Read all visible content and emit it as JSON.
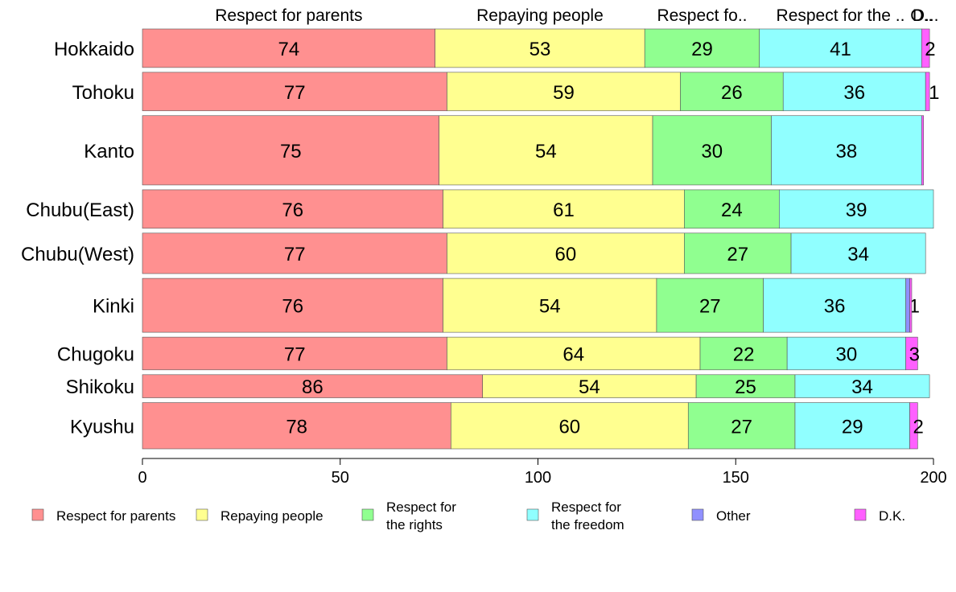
{
  "chart_data": {
    "type": "bar",
    "orientation": "horizontal",
    "stacked": true,
    "categories": [
      "Hokkaido",
      "Tohoku",
      "Kanto",
      "Chubu(East)",
      "Chubu(West)",
      "Kinki",
      "Chugoku",
      "Shikoku",
      "Kyushu"
    ],
    "category_weights": [
      1,
      1,
      1.8,
      1,
      1.05,
      1.4,
      0.85,
      0.6,
      1.2
    ],
    "series": [
      {
        "name": "Respect for parents",
        "legend_label": [
          "Respect for parents"
        ],
        "top_label": "Respect for parents",
        "color": "#FF9090",
        "values": [
          74,
          77,
          75,
          76,
          77,
          76,
          77,
          86,
          78
        ]
      },
      {
        "name": "Repaying people",
        "legend_label": [
          "Repaying people"
        ],
        "top_label": "Repaying people",
        "color": "#FFFF90",
        "values": [
          53,
          59,
          54,
          61,
          60,
          54,
          64,
          54,
          60
        ]
      },
      {
        "name": "Respect for the rights",
        "legend_label": [
          "Respect for",
          "the rights"
        ],
        "top_label": "Respect fo..",
        "color": "#90FF90",
        "values": [
          29,
          26,
          30,
          24,
          27,
          27,
          22,
          25,
          27
        ]
      },
      {
        "name": "Respect for the freedom",
        "legend_label": [
          "Respect for",
          "the freedom"
        ],
        "top_label": "Respect for the ..",
        "color": "#90FFFF",
        "values": [
          41,
          36,
          38,
          39,
          34,
          36,
          30,
          34,
          29
        ]
      },
      {
        "name": "Other",
        "legend_label": [
          "Other"
        ],
        "top_label": "O..",
        "color": "#9090FF",
        "values": [
          0,
          0,
          0,
          0,
          0,
          1,
          0,
          0,
          0
        ]
      },
      {
        "name": "D.K.",
        "legend_label": [
          "D.K."
        ],
        "top_label": "D...",
        "color": "#FF60FF",
        "values": [
          2,
          1,
          0.5,
          0,
          0,
          0.5,
          3,
          0,
          2
        ]
      }
    ],
    "data_labels": [
      [
        "74",
        "53",
        "29",
        "41",
        "",
        "2"
      ],
      [
        "77",
        "59",
        "26",
        "36",
        "",
        "1"
      ],
      [
        "75",
        "54",
        "30",
        "38",
        "",
        ""
      ],
      [
        "76",
        "61",
        "24",
        "39",
        "",
        ""
      ],
      [
        "77",
        "60",
        "27",
        "34",
        "",
        ""
      ],
      [
        "76",
        "54",
        "27",
        "36",
        "1",
        ""
      ],
      [
        "77",
        "64",
        "22",
        "30",
        "",
        "3"
      ],
      [
        "86",
        "54",
        "25",
        "34",
        "",
        ""
      ],
      [
        "78",
        "60",
        "27",
        "29",
        "",
        "2"
      ]
    ],
    "xlim": [
      0,
      200
    ],
    "xticks": [
      0,
      50,
      100,
      150,
      200
    ],
    "xlabel": "",
    "ylabel": "",
    "title": "",
    "grid": false,
    "legend_position": "bottom"
  }
}
